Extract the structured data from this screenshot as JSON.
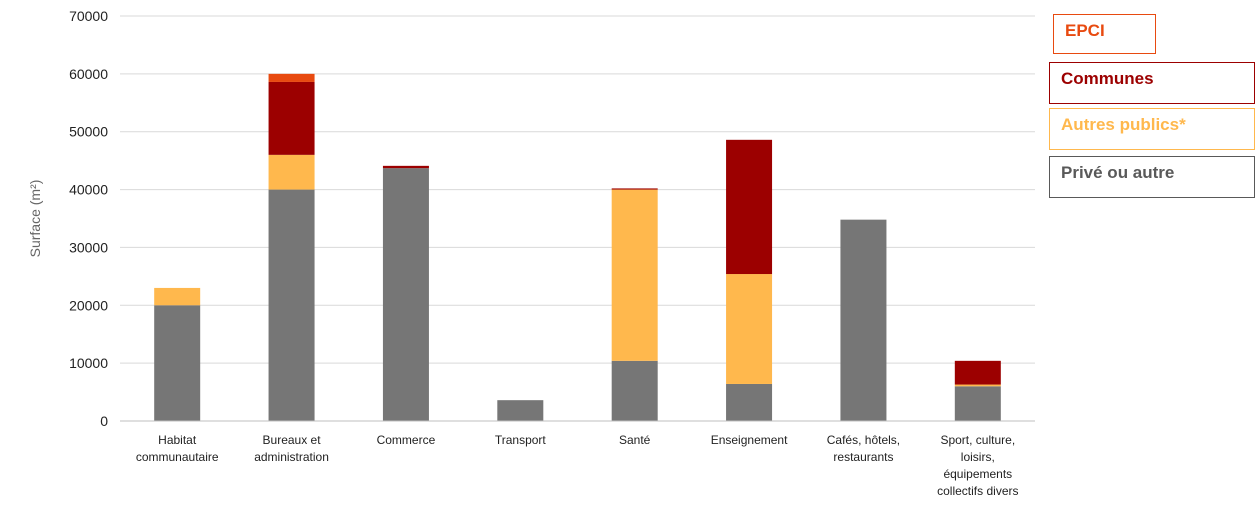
{
  "chart_data": {
    "type": "bar",
    "stacked": true,
    "categories": [
      [
        "Habitat",
        "communautaire"
      ],
      [
        "Bureaux et",
        "administration"
      ],
      [
        "Commerce"
      ],
      [
        "Transport"
      ],
      [
        "Santé"
      ],
      [
        "Enseignement"
      ],
      [
        "Cafés, hôtels,",
        "restaurants"
      ],
      [
        "Sport, culture,",
        "loisirs,",
        "équipements",
        "collectifs divers"
      ]
    ],
    "series": [
      {
        "name": "Privé ou autre",
        "color": "#767676",
        "values": [
          20000,
          40000,
          43700,
          3600,
          10400,
          6400,
          34800,
          6000
        ]
      },
      {
        "name": "Autres publics*",
        "color": "#FFB84D",
        "values": [
          3000,
          6000,
          0,
          0,
          29600,
          19000,
          0,
          300
        ]
      },
      {
        "name": "Communes",
        "color": "#9C0000",
        "values": [
          0,
          12600,
          400,
          0,
          200,
          23200,
          0,
          4100
        ]
      },
      {
        "name": "EPCI",
        "color": "#E84A10",
        "values": [
          0,
          1400,
          0,
          0,
          0,
          0,
          0,
          0
        ]
      }
    ],
    "ylabel": "Surface (m²)",
    "ylim": [
      0,
      70000
    ],
    "yticks": [
      "0",
      "10000",
      "20000",
      "30000",
      "40000",
      "50000",
      "60000",
      "70000"
    ],
    "grid": true,
    "legend_position": "right",
    "legend": [
      {
        "label": "EPCI",
        "text_color": "#E84A10",
        "border_color": "#E84A10"
      },
      {
        "label": "Communes",
        "text_color": "#9C0000",
        "border_color": "#9C0000"
      },
      {
        "label": "Autres publics*",
        "text_color": "#FFB84D",
        "border_color": "#FFB84D"
      },
      {
        "label": "Privé ou autre",
        "text_color": "#595959",
        "border_color": "#595959"
      }
    ]
  }
}
